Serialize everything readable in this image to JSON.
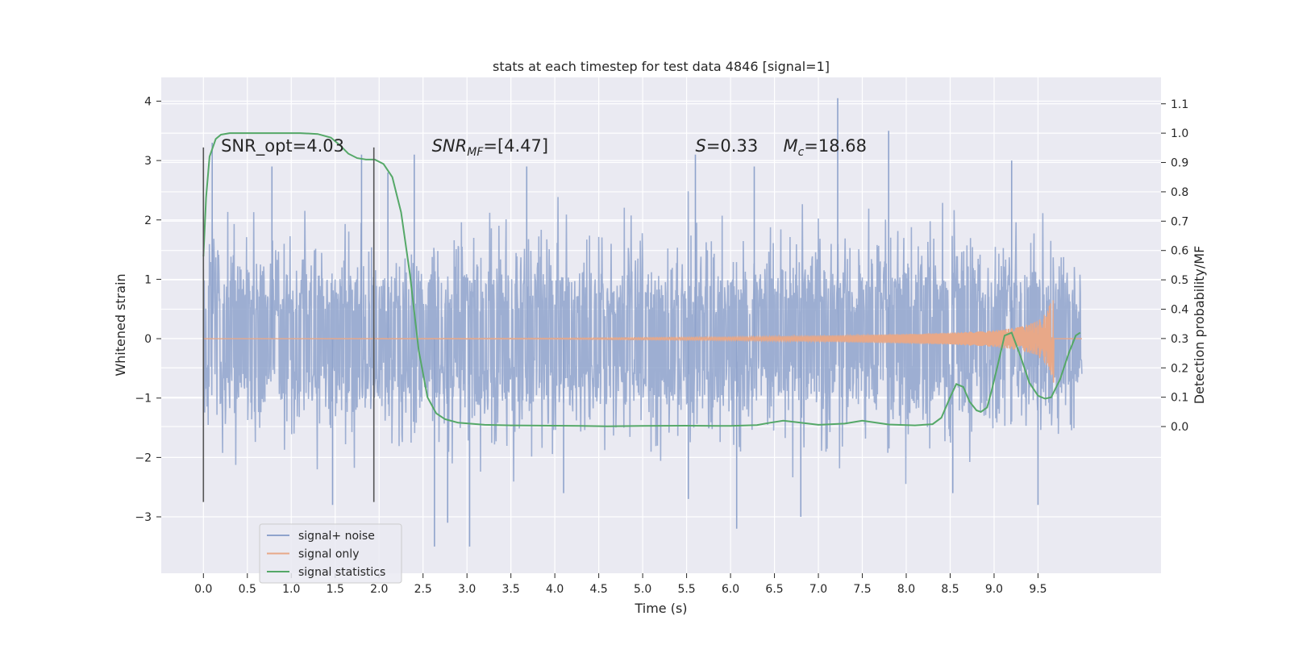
{
  "chart_data": {
    "type": "line",
    "title": "stats at each timestep for test data 4846 [signal=1]",
    "xlabel": "Time (s)",
    "ylabel": "Whitened strain",
    "ylabel_right": "Detection probability/MF",
    "xlim": [
      -0.48,
      10.9
    ],
    "ylim": [
      -3.95,
      4.4
    ],
    "ylim_right": [
      -0.5,
      1.19
    ],
    "x_ticks": [
      "0.0",
      "0.5",
      "1.0",
      "1.5",
      "2.0",
      "2.5",
      "3.0",
      "3.5",
      "4.0",
      "4.5",
      "5.0",
      "5.5",
      "6.0",
      "6.5",
      "7.0",
      "7.5",
      "8.0",
      "8.5",
      "9.0",
      "9.5"
    ],
    "y_ticks": [
      "−3",
      "−2",
      "−1",
      "0",
      "1",
      "2",
      "3",
      "4"
    ],
    "y_ticks_right": [
      "0.0",
      "0.1",
      "0.2",
      "0.3",
      "0.4",
      "0.5",
      "0.6",
      "0.7",
      "0.8",
      "0.9",
      "1.0",
      "1.1"
    ],
    "grid": true,
    "legend_position": "lower-left",
    "colors": {
      "plot_background": "#eaeaf2",
      "grid": "#ffffff",
      "noise": "#8fa3cc",
      "signal": "#e8a888",
      "statistics": "#55a868",
      "marker_lines": "#555555"
    },
    "series": [
      {
        "name": "signal+ noise",
        "axis": "left",
        "envelope_x": [
          0.0,
          1.0,
          2.0,
          3.0,
          4.0,
          5.0,
          6.0,
          7.0,
          8.0,
          9.0,
          10.0
        ],
        "envelope_upper": [
          2.2,
          2.0,
          2.0,
          2.1,
          2.2,
          2.1,
          2.0,
          2.2,
          2.1,
          2.2,
          1.8
        ],
        "envelope_lower": [
          -2.0,
          -2.0,
          -2.0,
          -2.1,
          -2.0,
          -2.0,
          -2.0,
          -2.1,
          -2.0,
          -2.1,
          -1.8
        ],
        "spike_x": [
          0.1,
          0.78,
          1.47,
          1.8,
          2.1,
          2.4,
          2.63,
          2.78,
          3.03,
          3.68,
          4.1,
          5.52,
          5.6,
          6.07,
          6.27,
          6.8,
          7.22,
          7.8,
          8.53,
          9.2,
          9.5
        ],
        "spike_y": [
          3.3,
          2.9,
          -2.8,
          3.1,
          2.8,
          3.1,
          -3.5,
          -3.1,
          -3.5,
          2.9,
          -2.6,
          -2.7,
          3.1,
          -3.2,
          2.9,
          -3.0,
          4.05,
          3.5,
          -2.6,
          3.0,
          -2.8
        ]
      },
      {
        "name": "signal only",
        "axis": "left",
        "x": [
          0.0,
          4.0,
          6.0,
          7.0,
          8.0,
          8.5,
          9.0,
          9.3,
          9.5,
          9.6,
          9.65,
          9.68
        ],
        "amplitude": [
          0.0,
          0.01,
          0.03,
          0.05,
          0.08,
          0.1,
          0.14,
          0.2,
          0.3,
          0.45,
          0.65,
          0.75
        ]
      },
      {
        "name": "signal statistics",
        "axis": "right",
        "x": [
          0.0,
          0.03,
          0.07,
          0.14,
          0.2,
          0.3,
          0.5,
          0.8,
          1.1,
          1.3,
          1.45,
          1.55,
          1.65,
          1.75,
          1.85,
          1.95,
          2.05,
          2.15,
          2.25,
          2.35,
          2.45,
          2.55,
          2.65,
          2.75,
          2.9,
          3.2,
          3.5,
          4.0,
          4.3,
          4.6,
          5.0,
          5.5,
          6.0,
          6.3,
          6.45,
          6.6,
          6.75,
          7.0,
          7.3,
          7.5,
          7.8,
          8.1,
          8.3,
          8.4,
          8.5,
          8.57,
          8.65,
          8.72,
          8.8,
          8.85,
          8.92,
          8.97,
          9.05,
          9.12,
          9.2,
          9.3,
          9.4,
          9.5,
          9.58,
          9.65,
          9.75,
          9.85,
          9.93,
          9.98
        ],
        "y": [
          0.58,
          0.78,
          0.92,
          0.98,
          0.995,
          1.0,
          1.0,
          1.0,
          1.0,
          0.997,
          0.985,
          0.96,
          0.93,
          0.915,
          0.91,
          0.91,
          0.895,
          0.85,
          0.73,
          0.52,
          0.26,
          0.1,
          0.045,
          0.025,
          0.013,
          0.006,
          0.004,
          0.003,
          0.002,
          0.001,
          0.002,
          0.003,
          0.002,
          0.005,
          0.013,
          0.02,
          0.015,
          0.006,
          0.01,
          0.02,
          0.007,
          0.004,
          0.008,
          0.03,
          0.1,
          0.145,
          0.135,
          0.085,
          0.055,
          0.05,
          0.065,
          0.12,
          0.22,
          0.31,
          0.32,
          0.24,
          0.15,
          0.105,
          0.095,
          0.1,
          0.16,
          0.25,
          0.31,
          0.32
        ]
      }
    ],
    "vertical_markers": [
      {
        "x": 0.0,
        "y0": -2.75,
        "y1": 3.22
      },
      {
        "x": 1.94,
        "y0": -2.75,
        "y1": 3.22
      }
    ],
    "annotations": [
      {
        "parts": [
          {
            "text": "SNR_opt=4.03"
          }
        ],
        "x": 0.2,
        "y": 3.15
      },
      {
        "parts": [
          {
            "text": "SNR",
            "italic": true
          },
          {
            "text": "MF",
            "italic": true,
            "sub": true
          },
          {
            "text": "=[4.47]"
          }
        ],
        "x": 2.6,
        "y": 3.15
      },
      {
        "parts": [
          {
            "text": "S",
            "italic": true
          },
          {
            "text": "=0.33"
          }
        ],
        "x": 5.6,
        "y": 3.15
      },
      {
        "parts": [
          {
            "text": "M",
            "italic": true
          },
          {
            "text": "c",
            "italic": true,
            "sub": true
          },
          {
            "text": "=18.68"
          }
        ],
        "x": 6.6,
        "y": 3.15
      }
    ]
  }
}
